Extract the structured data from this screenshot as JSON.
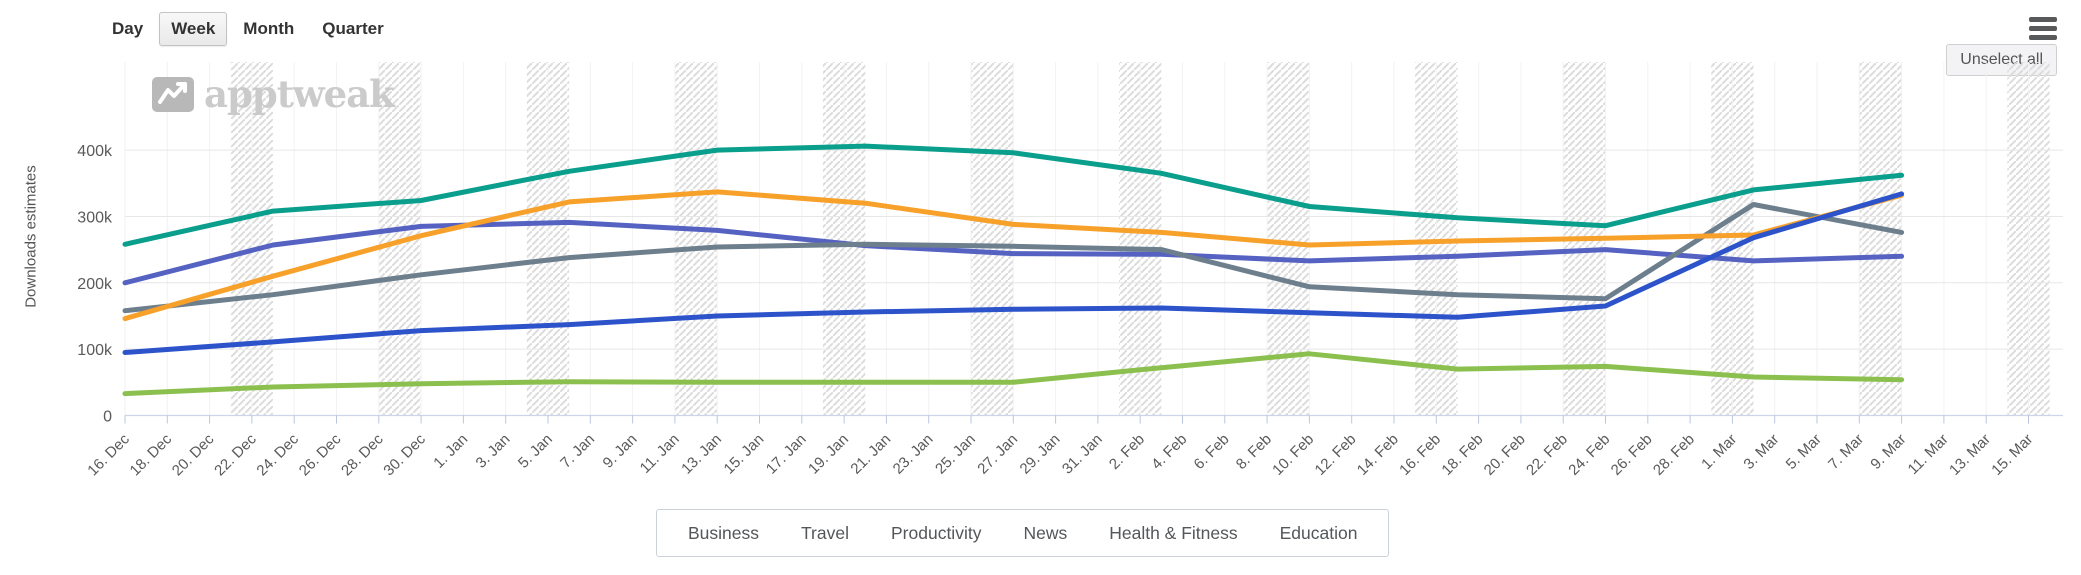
{
  "toolbar": {
    "periods": [
      {
        "label": "Day",
        "active": false
      },
      {
        "label": "Week",
        "active": true
      },
      {
        "label": "Month",
        "active": false
      },
      {
        "label": "Quarter",
        "active": false
      }
    ]
  },
  "menu": {
    "unselect_all_label": "Unselect all"
  },
  "watermark": {
    "brand": "apptweak"
  },
  "legend": {
    "items": [
      "Business",
      "Travel",
      "Productivity",
      "News",
      "Health & Fitness",
      "Education"
    ]
  },
  "chart_data": {
    "type": "line",
    "title": "",
    "ylabel": "Downloads estimates",
    "yticks": [
      "0",
      "100k",
      "200k",
      "300k",
      "400k"
    ],
    "ytick_values": [
      0,
      100000,
      200000,
      300000,
      400000
    ],
    "ylim": [
      0,
      450000
    ],
    "grid": true,
    "weekend_bands_hatched": true,
    "legend_position": "bottom",
    "x_tick_interval_days": 2,
    "x_tick_labels": [
      "16. Dec",
      "18. Dec",
      "20. Dec",
      "22. Dec",
      "24. Dec",
      "26. Dec",
      "28. Dec",
      "30. Dec",
      "1. Jan",
      "3. Jan",
      "5. Jan",
      "7. Jan",
      "9. Jan",
      "11. Jan",
      "13. Jan",
      "15. Jan",
      "17. Jan",
      "19. Jan",
      "21. Jan",
      "23. Jan",
      "25. Jan",
      "27. Jan",
      "29. Jan",
      "31. Jan",
      "2. Feb",
      "4. Feb",
      "6. Feb",
      "8. Feb",
      "10. Feb",
      "12. Feb",
      "14. Feb",
      "16. Feb",
      "18. Feb",
      "20. Feb",
      "22. Feb",
      "24. Feb",
      "26. Feb",
      "28. Feb",
      "1. Mar",
      "3. Mar",
      "5. Mar",
      "7. Mar",
      "9. Mar",
      "11. Mar",
      "13. Mar",
      "15. Mar"
    ],
    "week_dates": [
      "16. Dec",
      "23. Dec",
      "30. Dec",
      "6. Jan",
      "13. Jan",
      "20. Jan",
      "27. Jan",
      "3. Feb",
      "10. Feb",
      "17. Feb",
      "24. Feb",
      "2. Mar",
      "9. Mar"
    ],
    "series": [
      {
        "id": "business",
        "name": "Business",
        "color": "#0a9e8c",
        "values": [
          258000,
          308000,
          324000,
          368000,
          400000,
          406000,
          396000,
          365000,
          315000,
          298000,
          286000,
          340000,
          362000
        ]
      },
      {
        "id": "travel",
        "name": "Travel",
        "color": "#5562c2",
        "values": [
          200000,
          257000,
          285000,
          291000,
          279000,
          256000,
          244000,
          243000,
          233000,
          240000,
          250000,
          233000,
          240000
        ]
      },
      {
        "id": "productivity",
        "name": "Productivity",
        "color": "#2d53cb",
        "values": [
          95000,
          111000,
          128000,
          137000,
          150000,
          156000,
          160000,
          162000,
          155000,
          148000,
          165000,
          268000,
          334000
        ]
      },
      {
        "id": "news",
        "name": "News",
        "color": "#6d7e8c",
        "values": [
          158000,
          182000,
          212000,
          238000,
          254000,
          258000,
          255000,
          250000,
          194000,
          182000,
          176000,
          318000,
          276000
        ]
      },
      {
        "id": "health-fitness",
        "name": "Health & Fitness",
        "color": "#f7a12b",
        "values": [
          146000,
          210000,
          271000,
          322000,
          337000,
          320000,
          288000,
          276000,
          257000,
          263000,
          267000,
          272000,
          332000
        ]
      },
      {
        "id": "education",
        "name": "Education",
        "color": "#8bc04f",
        "values": [
          33000,
          43000,
          48000,
          51000,
          50000,
          50000,
          50000,
          72000,
          93000,
          70000,
          74000,
          58000,
          54000
        ]
      }
    ]
  }
}
